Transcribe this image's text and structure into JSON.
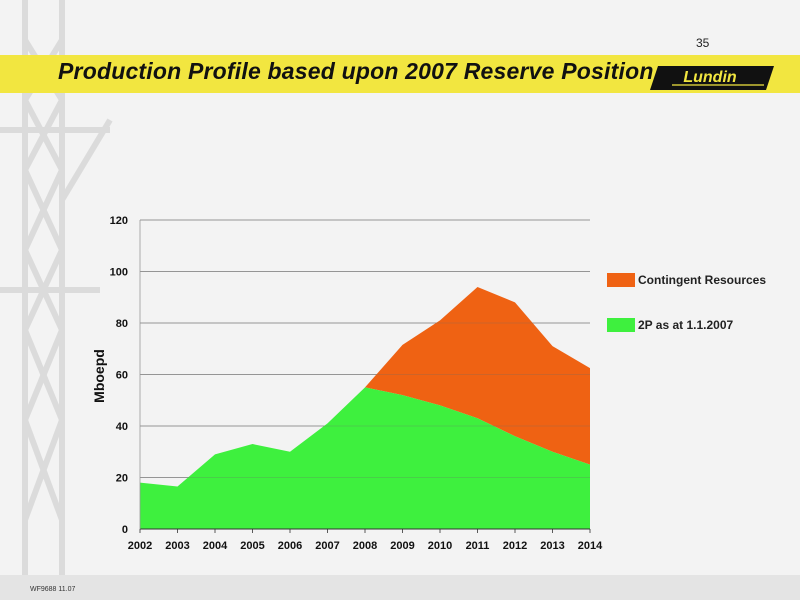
{
  "slide": {
    "number": "35",
    "title": "Production Profile based upon 2007 Reserve Position",
    "logo_text": "Lundin",
    "footer_code": "WF9688 11.07"
  },
  "colors": {
    "title_band": "#f2e640",
    "series_2p": "#3ef03e",
    "series_contingent": "#ef6213",
    "grid": "#8a8a8a"
  },
  "chart_data": {
    "type": "area",
    "stacked": true,
    "title": "",
    "xlabel": "",
    "ylabel": "Mboepd",
    "ylim": [
      0,
      120
    ],
    "yticks": [
      0,
      20,
      40,
      60,
      80,
      100,
      120
    ],
    "grid": true,
    "legend_position": "right",
    "categories": [
      "2002",
      "2003",
      "2004",
      "2005",
      "2006",
      "2007",
      "2008",
      "2009",
      "2010",
      "2011",
      "2012",
      "2013",
      "2014"
    ],
    "series": [
      {
        "name": "2P as at 1.1.2007",
        "color": "#3ef03e",
        "values": [
          18,
          16.5,
          29,
          33,
          30,
          41,
          55,
          52,
          48,
          43,
          36,
          30,
          25
        ]
      },
      {
        "name": "Contingent Resources",
        "color": "#ef6213",
        "values": [
          0,
          0,
          0,
          0,
          0,
          0,
          0,
          19.5,
          33,
          51,
          52,
          41,
          37.5
        ]
      }
    ],
    "legend": [
      {
        "name": "Contingent Resources",
        "color": "#ef6213"
      },
      {
        "name": "2P as at 1.1.2007",
        "color": "#3ef03e"
      }
    ]
  }
}
